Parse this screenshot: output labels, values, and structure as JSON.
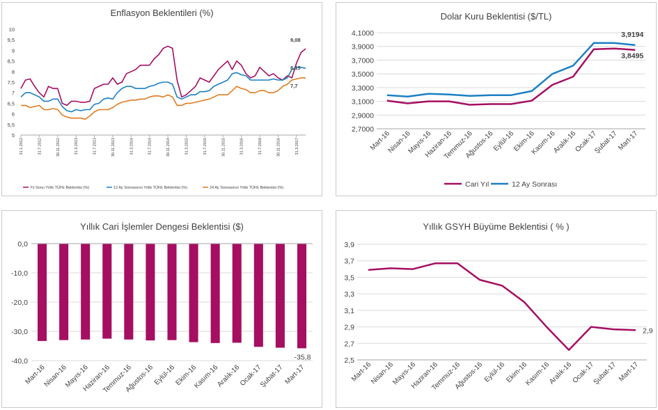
{
  "colors": {
    "magenta": "#a50e61",
    "blue": "#1b7fc3",
    "orange": "#e07b1f",
    "grid": "#d9d9d9",
    "axis": "#a6a6a6"
  },
  "chart_data": [
    {
      "type": "line",
      "title": "Enflasyon Beklentileri (%)",
      "ylim": [
        5,
        10
      ],
      "yticks": [
        "5",
        "5,5",
        "6",
        "6,5",
        "7",
        "7,5",
        "8",
        "8,5",
        "9",
        "9,5",
        "10"
      ],
      "xtick_labels": [
        "31.1.2012",
        "31.7.2012",
        "30.11.2012",
        "31.3.2013",
        "31.7.2013",
        "30.11.2013",
        "31.3.2014",
        "31.7.2014",
        "30.11.2014",
        "31.3.2015",
        "31.7.2015",
        "30.11.2015",
        "31.3.2016",
        "31.7.2016",
        "30.11.2016",
        "31.3.2017"
      ],
      "x": [
        "2012-01",
        "2012-02",
        "2012-03",
        "2012-04",
        "2012-05",
        "2012-06",
        "2012-07",
        "2012-08",
        "2012-09",
        "2012-10",
        "2012-11",
        "2012-12",
        "2013-01",
        "2013-02",
        "2013-03",
        "2013-04",
        "2013-05",
        "2013-06",
        "2013-07",
        "2013-08",
        "2013-09",
        "2013-10",
        "2013-11",
        "2013-12",
        "2014-01",
        "2014-02",
        "2014-03",
        "2014-04",
        "2014-05",
        "2014-06",
        "2014-07",
        "2014-08",
        "2014-09",
        "2014-10",
        "2014-11",
        "2014-12",
        "2015-01",
        "2015-02",
        "2015-03",
        "2015-04",
        "2015-05",
        "2015-06",
        "2015-07",
        "2015-08",
        "2015-09",
        "2015-10",
        "2015-11",
        "2015-12",
        "2016-01",
        "2016-02",
        "2016-03",
        "2016-04",
        "2016-05",
        "2016-06",
        "2016-07",
        "2016-08",
        "2016-09",
        "2016-10",
        "2016-11",
        "2016-12",
        "2017-01",
        "2017-02",
        "2017-03"
      ],
      "series": [
        {
          "name": "Yıl Sonu Yıllık TÜFE Beklentisi (%)",
          "color": "#a50e61",
          "end_label": "9,08",
          "values": [
            7.2,
            7.6,
            7.65,
            7.3,
            7.0,
            6.8,
            7.3,
            7.2,
            7.2,
            6.5,
            6.4,
            6.6,
            6.6,
            6.55,
            6.55,
            6.6,
            7.2,
            7.3,
            7.4,
            7.4,
            7.7,
            7.4,
            7.5,
            7.9,
            8.0,
            8.1,
            8.3,
            8.3,
            8.3,
            8.6,
            8.8,
            9.1,
            9.2,
            9.1,
            7.6,
            6.8,
            6.9,
            7.1,
            7.3,
            7.7,
            7.6,
            7.5,
            7.8,
            8.1,
            8.3,
            8.5,
            8.1,
            8.5,
            8.3,
            7.9,
            7.7,
            7.8,
            8.2,
            8.0,
            7.8,
            7.9,
            7.7,
            7.6,
            7.8,
            7.7,
            8.4,
            8.9,
            9.08
          ]
        },
        {
          "name": "12 Ay Sonrasının Yıllık TÜFE Beklentisi (%)",
          "color": "#1b7fc3",
          "end_label": "8,15",
          "values": [
            6.8,
            7.0,
            7.0,
            6.9,
            6.8,
            6.6,
            6.6,
            6.7,
            6.7,
            6.35,
            6.15,
            6.1,
            6.2,
            6.15,
            6.2,
            6.2,
            6.45,
            6.5,
            6.7,
            6.75,
            6.7,
            7.0,
            7.2,
            7.3,
            7.3,
            7.2,
            7.2,
            7.2,
            7.3,
            7.35,
            7.45,
            7.5,
            7.5,
            7.4,
            6.8,
            6.7,
            6.8,
            6.9,
            6.9,
            7.05,
            7.05,
            7.1,
            7.3,
            7.4,
            7.5,
            7.6,
            7.9,
            7.95,
            7.85,
            7.8,
            7.6,
            7.6,
            7.6,
            7.6,
            7.6,
            7.65,
            7.6,
            7.6,
            7.7,
            8.1,
            8.2,
            8.2,
            8.15
          ]
        },
        {
          "name": "24 Ay Sonrasının Yıllık TÜFE Beklentisi (%)",
          "color": "#e07b1f",
          "end_label": "7,7",
          "values": [
            6.4,
            6.4,
            6.3,
            6.35,
            6.4,
            6.2,
            6.2,
            6.25,
            6.2,
            5.95,
            5.85,
            5.8,
            5.8,
            5.8,
            5.75,
            5.9,
            6.1,
            6.2,
            6.2,
            6.2,
            6.3,
            6.45,
            6.55,
            6.6,
            6.65,
            6.65,
            6.7,
            6.7,
            6.8,
            6.85,
            6.85,
            6.8,
            6.9,
            6.8,
            6.4,
            6.4,
            6.5,
            6.5,
            6.55,
            6.6,
            6.65,
            6.7,
            6.8,
            6.9,
            6.9,
            6.9,
            7.1,
            7.3,
            7.2,
            7.15,
            7.0,
            7.0,
            7.1,
            7.1,
            7.0,
            7.0,
            7.1,
            7.3,
            7.4,
            7.6,
            7.65,
            7.7,
            7.7
          ]
        }
      ],
      "legend_position": "bottom"
    },
    {
      "type": "line",
      "title": "Dolar Kuru Beklentisi ($/TL)",
      "ylim": [
        2.7,
        4.1
      ],
      "yticks": [
        "2,7000",
        "2,9000",
        "3,1000",
        "3,3000",
        "3,5000",
        "3,7000",
        "3,9000",
        "4,1000"
      ],
      "categories": [
        "Mart-16",
        "Nisan-16",
        "Mayıs-16",
        "Haziran-16",
        "Temmuz-16",
        "Ağustos-16",
        "Eylül-16",
        "Ekim-16",
        "Kasım-16",
        "Aralık-16",
        "Ocak-17",
        "Şubat-17",
        "Mart-17"
      ],
      "series": [
        {
          "name": "Cari Yıl",
          "color": "#a50e61",
          "end_label": "3,8495",
          "values": [
            3.11,
            3.07,
            3.1,
            3.1,
            3.05,
            3.06,
            3.06,
            3.11,
            3.34,
            3.46,
            3.86,
            3.87,
            3.8495
          ]
        },
        {
          "name": "12 Ay Sonrası",
          "color": "#1b7fc3",
          "end_label": "3,9194",
          "values": [
            3.19,
            3.17,
            3.21,
            3.2,
            3.18,
            3.19,
            3.19,
            3.25,
            3.5,
            3.62,
            3.95,
            3.95,
            3.9194
          ]
        }
      ],
      "legend_position": "bottom"
    },
    {
      "type": "bar",
      "title": "Yıllık Cari İşlemler Dengesi Beklentisi ($)",
      "ylim": [
        -40,
        0
      ],
      "yticks": [
        "-40,0",
        "-30,0",
        "-20,0",
        "-10,0",
        "0,0"
      ],
      "categories": [
        "Mart-16",
        "Nisan-16",
        "Mayıs-16",
        "Haziran-16",
        "Temmuz-16",
        "Ağustos-16",
        "Eylül-16",
        "Ekim-16",
        "Kasım-16",
        "Aralık-16",
        "Ocak-17",
        "Şubat-17",
        "Mart-17"
      ],
      "series": [
        {
          "color": "#a50e61",
          "end_label": "-35,8",
          "values": [
            -33.3,
            -33.0,
            -32.8,
            -32.5,
            -32.8,
            -33.1,
            -33.0,
            -33.7,
            -34.0,
            -33.9,
            -35.3,
            -35.6,
            -35.8
          ]
        }
      ]
    },
    {
      "type": "line",
      "title": "Yıllık GSYH Büyüme Beklentisi ( % )",
      "ylim": [
        2.5,
        3.9
      ],
      "yticks": [
        "2,5",
        "2,7",
        "2,9",
        "3,1",
        "3,3",
        "3,5",
        "3,7",
        "3,9"
      ],
      "categories": [
        "Mart-16",
        "Nisan-16",
        "Mayıs-16",
        "Haziran-16",
        "Temmuz-16",
        "Ağustos-16",
        "Eylül-16",
        "Ekim-16",
        "Kasım-16",
        "Aralık-16",
        "Ocak-17",
        "Şubat-17",
        "Mart-17"
      ],
      "series": [
        {
          "color": "#a50e61",
          "end_label": "2,9",
          "values": [
            3.59,
            3.61,
            3.6,
            3.67,
            3.67,
            3.47,
            3.4,
            3.2,
            2.9,
            2.62,
            2.9,
            2.87,
            2.86
          ]
        }
      ]
    }
  ]
}
